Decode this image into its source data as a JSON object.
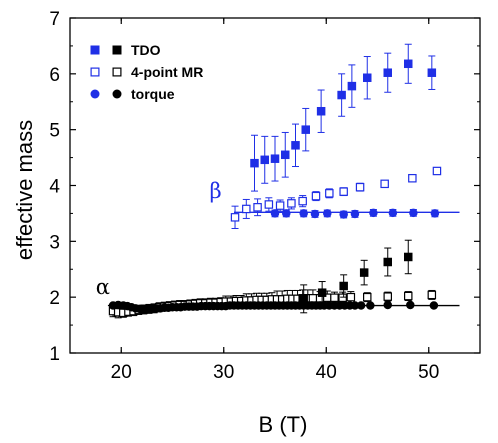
{
  "chart_data": {
    "type": "scatter",
    "title": "",
    "xlabel": "B (T)",
    "ylabel": "effective mass",
    "xlim": [
      15,
      55
    ],
    "ylim": [
      1,
      7
    ],
    "xticks": [
      20,
      30,
      40,
      50
    ],
    "yticks": [
      1,
      2,
      3,
      4,
      5,
      6,
      7
    ],
    "grid": false,
    "legend_position": "top-left",
    "legend": [
      {
        "label": "TDO",
        "marker": "filled-square",
        "colors": [
          "#1f2fe6",
          "#000000"
        ]
      },
      {
        "label": "4-point MR",
        "marker": "open-square",
        "colors": [
          "#1f2fe6",
          "#000000"
        ]
      },
      {
        "label": "torque",
        "marker": "filled-circle",
        "colors": [
          "#1f2fe6",
          "#000000"
        ]
      }
    ],
    "annotations": [
      {
        "text": "α",
        "x": 18.2,
        "y": 2.06,
        "color": "#000000"
      },
      {
        "text": "β",
        "x": 29.2,
        "y": 3.78,
        "color": "#1f2fe6"
      }
    ],
    "reference_lines": [
      {
        "name": "beta-torque-fit",
        "x": [
          31,
          53
        ],
        "y": 3.52,
        "color": "#1f2fe6"
      },
      {
        "name": "alpha-torque-fit",
        "x": [
          18.7,
          53
        ],
        "y": 1.85,
        "color": "#000000"
      }
    ],
    "series": [
      {
        "name": "TDO",
        "branch": "β",
        "marker": "filled-square",
        "color": "#1f2fe6",
        "x": [
          33,
          34,
          35,
          36,
          37,
          38,
          39.5,
          41.5,
          42.5,
          44,
          46,
          48,
          50.3
        ],
        "y": [
          4.4,
          4.46,
          4.48,
          4.55,
          4.72,
          5.0,
          5.33,
          5.62,
          5.78,
          5.93,
          6.02,
          6.18,
          6.02
        ],
        "err": [
          0.5,
          0.42,
          0.4,
          0.4,
          0.38,
          0.38,
          0.38,
          0.38,
          0.38,
          0.38,
          0.35,
          0.35,
          0.3
        ]
      },
      {
        "name": "4-point MR",
        "branch": "β",
        "marker": "open-square",
        "color": "#1f2fe6",
        "x": [
          31.1,
          32.2,
          33.3,
          34.4,
          35.5,
          36.6,
          37.7,
          39.0,
          40.3,
          41.7,
          43.3,
          45.7,
          48.4,
          50.8
        ],
        "y": [
          3.43,
          3.58,
          3.61,
          3.66,
          3.64,
          3.68,
          3.72,
          3.81,
          3.86,
          3.89,
          3.97,
          4.03,
          4.13,
          4.26
        ],
        "err": [
          0.2,
          0.17,
          0.15,
          0.12,
          0.1,
          0.1,
          0.1,
          0.08,
          0.08,
          0.07,
          0.07,
          0.06,
          0.06,
          0.06
        ]
      },
      {
        "name": "torque",
        "branch": "β",
        "marker": "filled-circle",
        "color": "#1f2fe6",
        "x": [
          35,
          36.1,
          37.8,
          38.9,
          40.1,
          41.7,
          42.8,
          44.6,
          46.5,
          48.5,
          50.6
        ],
        "y": [
          3.5,
          3.5,
          3.5,
          3.49,
          3.5,
          3.48,
          3.49,
          3.51,
          3.51,
          3.51,
          3.5
        ],
        "err": [
          0.06,
          0.06,
          0.06,
          0.06,
          0.06,
          0.06,
          0.06,
          0.06,
          0.06,
          0.06,
          0.06
        ]
      },
      {
        "name": "TDO",
        "branch": "α",
        "marker": "filled-square",
        "color": "#000000",
        "x": [
          37.8,
          39.6,
          41.7,
          43.7,
          46.0,
          48.0
        ],
        "y": [
          1.97,
          2.08,
          2.2,
          2.44,
          2.63,
          2.72
        ],
        "err": [
          0.25,
          0.2,
          0.2,
          0.22,
          0.25,
          0.3
        ]
      },
      {
        "name": "4-point MR",
        "branch": "α",
        "marker": "open-square",
        "color": "#000000",
        "x": [
          19.2,
          19.7,
          20.2,
          20.7,
          21.2,
          21.7,
          22.2,
          22.7,
          23.2,
          23.7,
          24.2,
          24.7,
          25.2,
          25.7,
          26.2,
          26.7,
          27.2,
          27.7,
          28.2,
          28.7,
          29.2,
          29.7,
          30.2,
          30.7,
          31.2,
          31.7,
          32.2,
          32.7,
          33.2,
          33.7,
          34.2,
          34.7,
          35.2,
          35.7,
          36.2,
          36.7,
          37.2,
          37.7,
          38.2,
          38.7,
          39.4,
          40.1,
          40.8,
          41.6,
          42.4,
          44.0,
          46.0,
          48.0,
          50.3
        ],
        "y": [
          1.75,
          1.73,
          1.72,
          1.74,
          1.75,
          1.77,
          1.78,
          1.79,
          1.8,
          1.82,
          1.83,
          1.84,
          1.85,
          1.86,
          1.86,
          1.87,
          1.88,
          1.89,
          1.89,
          1.9,
          1.9,
          1.91,
          1.92,
          1.92,
          1.93,
          1.93,
          1.94,
          1.94,
          1.95,
          1.95,
          1.95,
          1.96,
          1.96,
          1.96,
          1.97,
          1.97,
          1.97,
          1.98,
          1.98,
          1.98,
          1.98,
          1.99,
          1.99,
          1.99,
          2.0,
          2.0,
          2.01,
          2.02,
          2.04
        ],
        "err": [
          0.1,
          0.1,
          0.08,
          0.08,
          0.08,
          0.08,
          0.08,
          0.08,
          0.08,
          0.08,
          0.08,
          0.08,
          0.08,
          0.08,
          0.08,
          0.08,
          0.08,
          0.08,
          0.08,
          0.08,
          0.08,
          0.08,
          0.1,
          0.1,
          0.1,
          0.1,
          0.12,
          0.12,
          0.12,
          0.12,
          0.12,
          0.12,
          0.15,
          0.15,
          0.15,
          0.15,
          0.15,
          0.15,
          0.15,
          0.15,
          0.12,
          0.12,
          0.1,
          0.1,
          0.1,
          0.08,
          0.08,
          0.08,
          0.08
        ]
      },
      {
        "name": "torque",
        "branch": "α",
        "marker": "filled-circle",
        "color": "#000000",
        "x": [
          19.2,
          19.7,
          20.2,
          20.6,
          21.0,
          21.4,
          21.8,
          22.2,
          22.6,
          23.0,
          23.4,
          23.8,
          24.2,
          24.6,
          25.0,
          25.4,
          25.8,
          26.2,
          26.6,
          27.0,
          27.4,
          27.8,
          28.2,
          28.6,
          29.0,
          29.4,
          29.8,
          30.2,
          30.6,
          31.0,
          31.4,
          31.8,
          32.2,
          32.6,
          33.0,
          33.4,
          33.8,
          34.2,
          34.6,
          35.0,
          35.4,
          35.8,
          36.2,
          36.6,
          37.0,
          37.4,
          37.8,
          38.2,
          38.6,
          39.0,
          39.4,
          39.8,
          40.3,
          40.8,
          41.3,
          41.8,
          42.3,
          42.8,
          43.4,
          44.3,
          46.0,
          48.2,
          50.5
        ],
        "y": [
          1.85,
          1.86,
          1.85,
          1.84,
          1.82,
          1.8,
          1.79,
          1.79,
          1.79,
          1.8,
          1.8,
          1.8,
          1.81,
          1.81,
          1.82,
          1.82,
          1.82,
          1.83,
          1.83,
          1.83,
          1.83,
          1.84,
          1.84,
          1.84,
          1.84,
          1.84,
          1.84,
          1.84,
          1.85,
          1.85,
          1.85,
          1.85,
          1.85,
          1.85,
          1.85,
          1.85,
          1.85,
          1.85,
          1.85,
          1.85,
          1.85,
          1.85,
          1.85,
          1.85,
          1.85,
          1.85,
          1.85,
          1.85,
          1.85,
          1.85,
          1.85,
          1.85,
          1.85,
          1.85,
          1.85,
          1.85,
          1.85,
          1.85,
          1.85,
          1.85,
          1.86,
          1.86,
          1.85
        ]
      }
    ]
  }
}
